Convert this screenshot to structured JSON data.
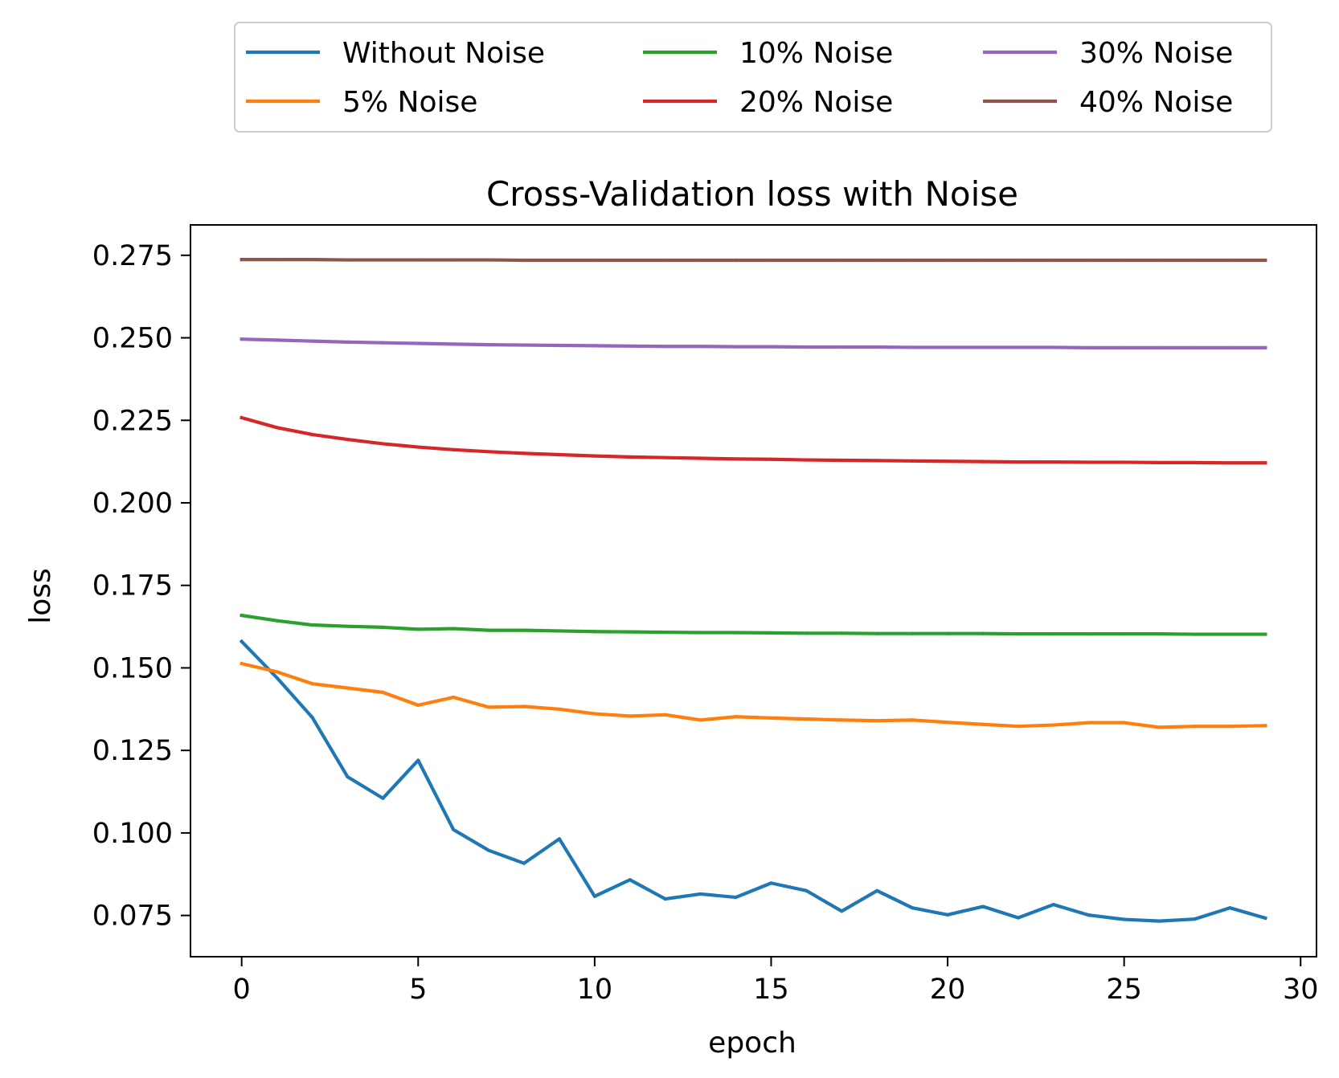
{
  "chart_data": {
    "type": "line",
    "title": "Cross-Validation loss with Noise",
    "xlabel": "epoch",
    "ylabel": "loss",
    "xlim": [
      -1.45,
      30.45
    ],
    "ylim": [
      0.0625,
      0.2842
    ],
    "xticks": [
      0,
      5,
      10,
      15,
      20,
      25,
      30
    ],
    "xtick_labels": [
      "0",
      "5",
      "10",
      "15",
      "20",
      "25",
      "30"
    ],
    "yticks": [
      0.075,
      0.1,
      0.125,
      0.15,
      0.175,
      0.2,
      0.225,
      0.25,
      0.275
    ],
    "ytick_labels": [
      "0.075",
      "0.100",
      "0.125",
      "0.150",
      "0.175",
      "0.200",
      "0.225",
      "0.250",
      "0.275"
    ],
    "grid": false,
    "legend_position": "top-center, above plot, 3 columns",
    "x": [
      0,
      1,
      2,
      3,
      4,
      5,
      6,
      7,
      8,
      9,
      10,
      11,
      12,
      13,
      14,
      15,
      16,
      17,
      18,
      19,
      20,
      21,
      22,
      23,
      24,
      25,
      26,
      27,
      28,
      29
    ],
    "series": [
      {
        "name": "Without Noise",
        "color": "#1f77b4",
        "values": [
          0.158,
          0.147,
          0.135,
          0.117,
          0.1105,
          0.122,
          0.101,
          0.0947,
          0.0908,
          0.0982,
          0.0808,
          0.0858,
          0.08,
          0.0815,
          0.0805,
          0.0848,
          0.0825,
          0.0763,
          0.0825,
          0.0773,
          0.0752,
          0.0777,
          0.0743,
          0.0783,
          0.0751,
          0.0738,
          0.0733,
          0.0739,
          0.0773,
          0.0742
        ]
      },
      {
        "name": "5% Noise",
        "color": "#ff7f0e",
        "values": [
          0.1513,
          0.1488,
          0.1452,
          0.1439,
          0.1426,
          0.1387,
          0.1411,
          0.1381,
          0.1383,
          0.1375,
          0.1361,
          0.1354,
          0.1358,
          0.1342,
          0.1352,
          0.1348,
          0.1345,
          0.1342,
          0.134,
          0.1342,
          0.1335,
          0.1329,
          0.1323,
          0.1327,
          0.1334,
          0.1334,
          0.132,
          0.1323,
          0.1323,
          0.1325
        ]
      },
      {
        "name": "10% Noise",
        "color": "#2ca02c",
        "values": [
          0.1659,
          0.1643,
          0.163,
          0.1626,
          0.1623,
          0.1617,
          0.1619,
          0.1614,
          0.1614,
          0.1612,
          0.161,
          0.1609,
          0.1608,
          0.1607,
          0.1607,
          0.1606,
          0.1605,
          0.1605,
          0.1604,
          0.1604,
          0.1604,
          0.1604,
          0.1603,
          0.1603,
          0.1603,
          0.1603,
          0.1603,
          0.1602,
          0.1602,
          0.1602
        ]
      },
      {
        "name": "20% Noise",
        "color": "#d62728",
        "values": [
          0.2258,
          0.2228,
          0.2207,
          0.2192,
          0.2179,
          0.2169,
          0.2161,
          0.2155,
          0.215,
          0.2146,
          0.2142,
          0.2139,
          0.2137,
          0.2135,
          0.2133,
          0.2132,
          0.213,
          0.2129,
          0.2128,
          0.2127,
          0.2126,
          0.2125,
          0.2124,
          0.2124,
          0.2123,
          0.2123,
          0.2122,
          0.2122,
          0.2121,
          0.2121
        ]
      },
      {
        "name": "30% Noise",
        "color": "#9467bd",
        "values": [
          0.2496,
          0.2493,
          0.249,
          0.2487,
          0.2485,
          0.2483,
          0.2481,
          0.2479,
          0.2478,
          0.2477,
          0.2476,
          0.2475,
          0.2474,
          0.2474,
          0.2473,
          0.2473,
          0.2472,
          0.2472,
          0.2472,
          0.2471,
          0.2471,
          0.2471,
          0.2471,
          0.2471,
          0.247,
          0.247,
          0.247,
          0.247,
          0.247,
          0.247
        ]
      },
      {
        "name": "40% Noise",
        "color": "#8c564b",
        "values": [
          0.2737,
          0.2737,
          0.2737,
          0.2736,
          0.2736,
          0.2736,
          0.2736,
          0.2736,
          0.2735,
          0.2735,
          0.2735,
          0.2735,
          0.2735,
          0.2735,
          0.2735,
          0.2735,
          0.2735,
          0.2735,
          0.2735,
          0.2735,
          0.2735,
          0.2735,
          0.2735,
          0.2735,
          0.2735,
          0.2735,
          0.2735,
          0.2735,
          0.2735,
          0.2735
        ]
      }
    ]
  }
}
